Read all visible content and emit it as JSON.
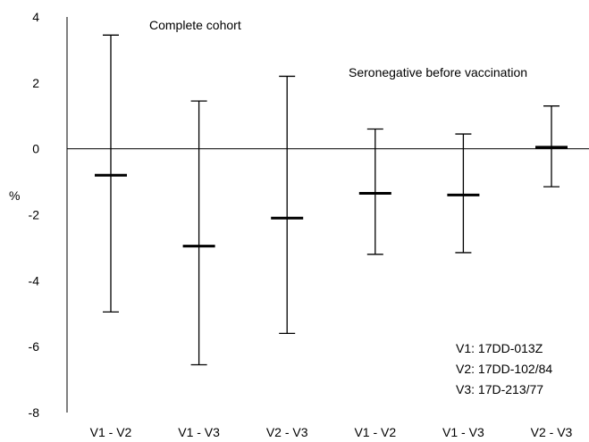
{
  "chart_data": {
    "type": "error_bar",
    "ylabel": "%",
    "ylim": [
      -8,
      4
    ],
    "yticks": [
      4,
      2,
      0,
      -2,
      -4,
      -6,
      -8
    ],
    "grid": false,
    "reference_line": 0,
    "groups": [
      {
        "label": "Complete cohort",
        "categories_index": [
          0,
          1,
          2
        ]
      },
      {
        "label": "Seronegative before vaccination",
        "categories_index": [
          3,
          4,
          5
        ]
      }
    ],
    "categories": [
      "V1 - V2",
      "V1 - V3",
      "V2 - V3",
      "V1 - V2",
      "V1 - V3",
      "V2 - V3"
    ],
    "estimates": [
      -0.8,
      -2.95,
      -2.1,
      -1.35,
      -1.4,
      0.05
    ],
    "lower": [
      -4.95,
      -6.55,
      -5.6,
      -3.2,
      -3.15,
      -1.15
    ],
    "upper": [
      3.45,
      1.45,
      2.2,
      0.6,
      0.45,
      1.3
    ],
    "legend_lines": [
      "V1: 17DD-013Z",
      "V2: 17DD-102/84",
      "V3: 17D-213/77"
    ]
  }
}
